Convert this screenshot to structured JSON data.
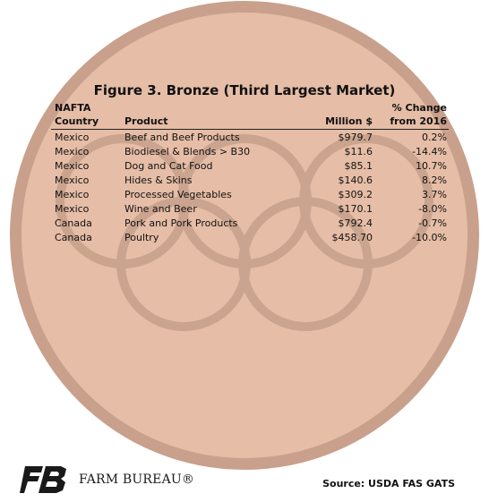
{
  "colors": {
    "medal_rim": "#c9a08b",
    "medal_face": "#e6bda6",
    "rings": "#c6a08a",
    "text": "#111111",
    "logo": "#1a1a1a"
  },
  "icons": {
    "logo": "farm-bureau-fb-logo-icon"
  },
  "chart_data": {
    "type": "table",
    "title": "Figure 3. Bronze (Third Largest Market)",
    "columns": {
      "country": [
        "NAFTA",
        "Country"
      ],
      "product": "Product",
      "value": "Million $",
      "change": [
        "% Change",
        "from 2016"
      ]
    },
    "rows": [
      {
        "country": "Mexico",
        "product": "Beef and Beef Products",
        "value": "$979.7",
        "change": "0.2%"
      },
      {
        "country": "Mexico",
        "product": "Biodiesel & Blends > B30",
        "value": "$11.6",
        "change": "-14.4%"
      },
      {
        "country": "Mexico",
        "product": "Dog and Cat Food",
        "value": "$85.1",
        "change": "10.7%"
      },
      {
        "country": "Mexico",
        "product": "Hides & Skins",
        "value": "$140.6",
        "change": "8.2%"
      },
      {
        "country": "Mexico",
        "product": "Processed Vegetables",
        "value": "$309.2",
        "change": "3.7%"
      },
      {
        "country": "Mexico",
        "product": "Wine and Beer",
        "value": "$170.1",
        "change": "-8.0%"
      },
      {
        "country": "Canada",
        "product": "Pork and Pork Products",
        "value": "$792.4",
        "change": "-0.7%"
      },
      {
        "country": "Canada",
        "product": "Poultry",
        "value": "$458.70",
        "change": "-10.0%"
      }
    ]
  },
  "footer": {
    "brand": "FARM BUREAU®",
    "source": "Source: USDA FAS GATS"
  }
}
